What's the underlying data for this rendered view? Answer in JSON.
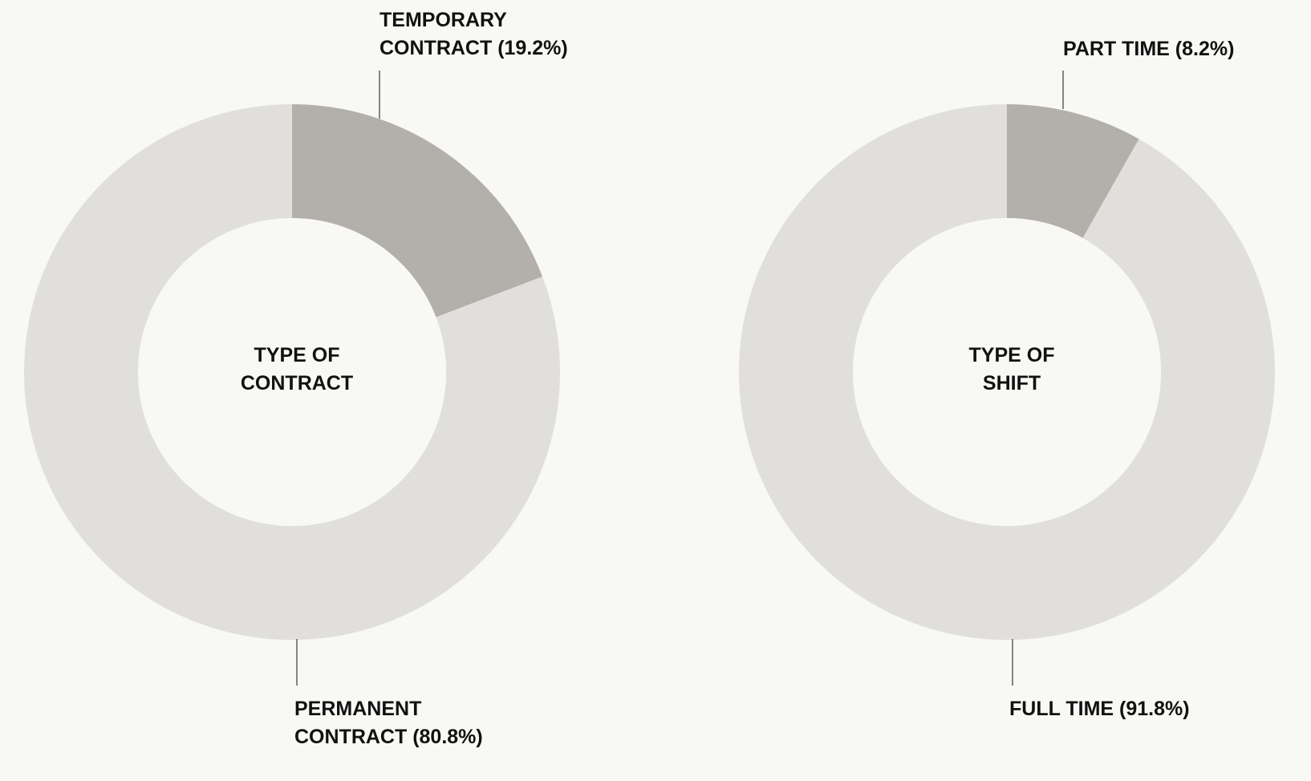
{
  "chart_data": [
    {
      "type": "donut",
      "title": "TYPE OF\nCONTRACT",
      "values": [
        19.2,
        80.8
      ],
      "value_labels": [
        "TEMPORARY\nCONTRACT (19.2%)",
        "PERMANENT\nCONTRACT (80.8%)"
      ],
      "colors": [
        "#b3b0ab",
        "#e0dfdb"
      ]
    },
    {
      "type": "donut",
      "title": "TYPE OF\nSHIFT",
      "values": [
        8.2,
        91.8
      ],
      "value_labels": [
        "PART TIME (8.2%)",
        "FULL TIME (91.8%)"
      ],
      "colors": [
        "#b3b0ab",
        "#e0dfdb"
      ]
    }
  ]
}
